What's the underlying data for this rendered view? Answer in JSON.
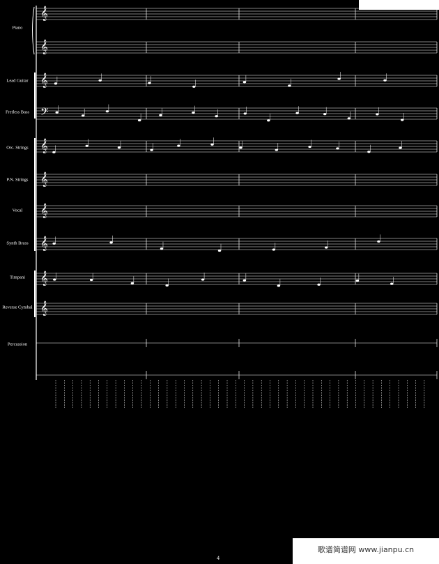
{
  "instruments": [
    "Piano",
    "Lead Guitar",
    "Fretless Bass",
    "Orc. Strings",
    "P.N. Strings",
    "Vocal",
    "Synth Brass",
    "Timpani",
    "Reverse Cymbal",
    "Percussion"
  ],
  "page_number": "4",
  "watermark": "歌谱简谱网 www.jianpu.cn"
}
